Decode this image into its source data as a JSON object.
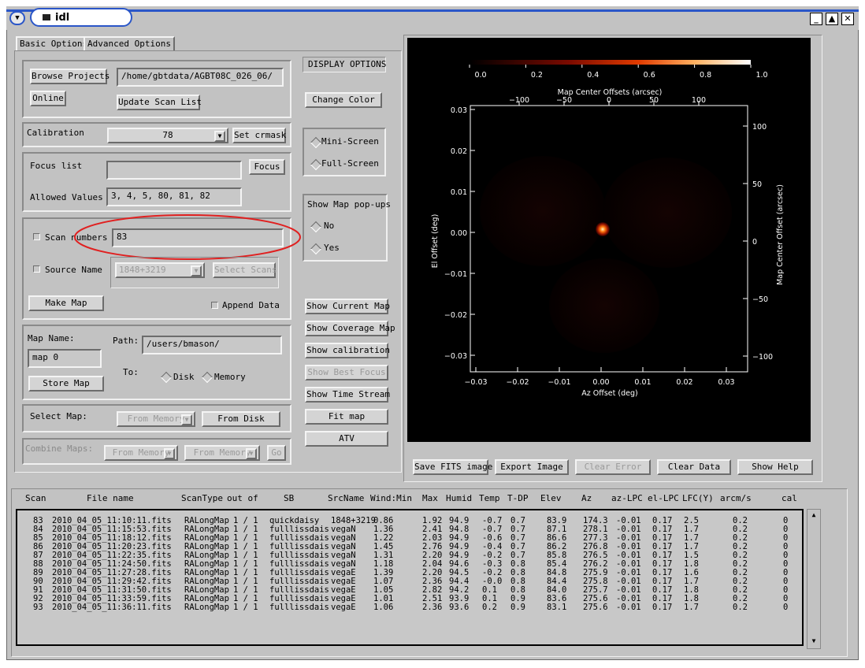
{
  "window": {
    "title": "idl",
    "menu_icon": "chevron-down-icon",
    "buttons": [
      "minimize-icon",
      "maximize-icon",
      "close-icon"
    ]
  },
  "tabs": [
    "Basic Options",
    "Advanced Options"
  ],
  "project": {
    "browse_label": "Browse Projects",
    "online_label": "Online",
    "path_value": "/home/gbtdata/AGBT08C_026_06/",
    "update_label": "Update Scan List"
  },
  "calibration": {
    "label": "Calibration",
    "value": "78",
    "set_label": "Set crmask"
  },
  "focus": {
    "list_label": "Focus list",
    "list_value": "",
    "focus_btn": "Focus",
    "allowed_label": "Allowed Values",
    "allowed_value": "3, 4, 5, 80, 81, 82"
  },
  "scan": {
    "numbers_label": "Scan numbers",
    "numbers_value": "83",
    "source_label": "Source Name",
    "source_value": "1848+3219",
    "select_scans": "Select Scans",
    "make_map": "Make Map",
    "append_data": "Append Data"
  },
  "mapname": {
    "label": "Map Name:",
    "value": "map 0",
    "path_label": "Path:",
    "path_value": "/users/bmason/",
    "to_label": "To:",
    "disk": "Disk",
    "memory": "Memory",
    "store": "Store Map"
  },
  "select_map": {
    "label": "Select Map:",
    "from_memory": "From Memory",
    "from_disk": "From Disk"
  },
  "combine": {
    "label": "Combine Maps:",
    "from_memory_1": "From Memory",
    "from_memory_2": "From Memory",
    "go": "Go"
  },
  "display": {
    "title": "DISPLAY OPTIONS",
    "change_color": "Change Color",
    "mini": "Mini-Screen",
    "full": "Full-Screen",
    "popups_title": "Show Map pop-ups",
    "no": "No",
    "yes": "Yes",
    "show_current": "Show Current Map",
    "show_coverage": "Show Coverage Map",
    "show_calibration": "Show calibration",
    "show_best_focus": "Show Best Focus",
    "show_time_stream": "Show Time Stream",
    "fit_map": "Fit map",
    "atv": "ATV"
  },
  "bottom_buttons": [
    "Save FITS image",
    "Export Image",
    "Clear Error",
    "Clear Data",
    "Show Help"
  ],
  "plot": {
    "colorbar_ticks": [
      "0.0",
      "0.2",
      "0.4",
      "0.6",
      "0.8",
      "1.0"
    ],
    "top_axis_label": "Map Center Offsets (arcsec)",
    "top_ticks": [
      "−100",
      "−50",
      "0",
      "50",
      "100"
    ],
    "bottom_axis_label": "Az Offset (deg)",
    "bottom_ticks": [
      "−0.03",
      "−0.02",
      "−0.01",
      "0.00",
      "0.01",
      "0.02",
      "0.03"
    ],
    "left_axis_label": "El Offset (deg)",
    "left_ticks": [
      "0.03",
      "0.02",
      "0.01",
      "0.00",
      "−0.01",
      "−0.02",
      "−0.03"
    ],
    "right_axis_label": "Map Center Offset (arcsec)",
    "right_ticks": [
      "100",
      "50",
      "0",
      "−50",
      "−100"
    ]
  },
  "table": {
    "headers": [
      "Scan",
      "File name",
      "ScanType",
      "out of",
      "SB",
      "SrcName",
      "Wind:Min",
      "Max",
      "Humid",
      "Temp",
      "T-DP",
      "Elev",
      "Az",
      "az-LPC",
      "el-LPC",
      "LFC(Y)",
      "arcm/s",
      "cal"
    ],
    "rows": [
      [
        "83",
        "2010_04_05_11:10:11.fits",
        "RALongMap",
        "1 / 1",
        "quickdaisy",
        "1848+3219",
        "0.86",
        "1.92",
        "94.9",
        "-0.7",
        "0.7",
        "83.9",
        "174.3",
        "-0.01",
        "0.17",
        "2.5",
        "0.2",
        "0"
      ],
      [
        "84",
        "2010_04_05_11:15:53.fits",
        "RALongMap",
        "1 / 1",
        "fulllissdais",
        "vegaN",
        "1.36",
        "2.41",
        "94.8",
        "-0.7",
        "0.7",
        "87.1",
        "278.1",
        "-0.01",
        "0.17",
        "1.7",
        "0.2",
        "0"
      ],
      [
        "85",
        "2010_04_05_11:18:12.fits",
        "RALongMap",
        "1 / 1",
        "fulllissdais",
        "vegaN",
        "1.22",
        "2.03",
        "94.9",
        "-0.6",
        "0.7",
        "86.6",
        "277.3",
        "-0.01",
        "0.17",
        "1.7",
        "0.2",
        "0"
      ],
      [
        "86",
        "2010_04_05_11:20:23.fits",
        "RALongMap",
        "1 / 1",
        "fulllissdais",
        "vegaN",
        "1.45",
        "2.76",
        "94.9",
        "-0.4",
        "0.7",
        "86.2",
        "276.8",
        "-0.01",
        "0.17",
        "1.7",
        "0.2",
        "0"
      ],
      [
        "87",
        "2010_04_05_11:22:35.fits",
        "RALongMap",
        "1 / 1",
        "fulllissdais",
        "vegaN",
        "1.31",
        "2.20",
        "94.9",
        "-0.2",
        "0.7",
        "85.8",
        "276.5",
        "-0.01",
        "0.17",
        "1.5",
        "0.2",
        "0"
      ],
      [
        "88",
        "2010_04_05_11:24:50.fits",
        "RALongMap",
        "1 / 1",
        "fulllissdais",
        "vegaN",
        "1.18",
        "2.04",
        "94.6",
        "-0.3",
        "0.8",
        "85.4",
        "276.2",
        "-0.01",
        "0.17",
        "1.8",
        "0.2",
        "0"
      ],
      [
        "89",
        "2010_04_05_11:27:28.fits",
        "RALongMap",
        "1 / 1",
        "fulllissdais",
        "vegaE",
        "1.39",
        "2.20",
        "94.5",
        "-0.2",
        "0.8",
        "84.8",
        "275.9",
        "-0.01",
        "0.17",
        "1.6",
        "0.2",
        "0"
      ],
      [
        "90",
        "2010_04_05_11:29:42.fits",
        "RALongMap",
        "1 / 1",
        "fulllissdais",
        "vegaE",
        "1.07",
        "2.36",
        "94.4",
        "-0.0",
        "0.8",
        "84.4",
        "275.8",
        "-0.01",
        "0.17",
        "1.7",
        "0.2",
        "0"
      ],
      [
        "91",
        "2010_04_05_11:31:50.fits",
        "RALongMap",
        "1 / 1",
        "fulllissdais",
        "vegaE",
        "1.05",
        "2.82",
        "94.2",
        "0.1",
        "0.8",
        "84.0",
        "275.7",
        "-0.01",
        "0.17",
        "1.8",
        "0.2",
        "0"
      ],
      [
        "92",
        "2010_04_05_11:33:59.fits",
        "RALongMap",
        "1 / 1",
        "fulllissdais",
        "vegaE",
        "1.01",
        "2.51",
        "93.9",
        "0.1",
        "0.9",
        "83.6",
        "275.6",
        "-0.01",
        "0.17",
        "1.8",
        "0.2",
        "0"
      ],
      [
        "93",
        "2010_04_05_11:36:11.fits",
        "RALongMap",
        "1 / 1",
        "fulllissdais",
        "vegaE",
        "1.06",
        "2.36",
        "93.6",
        "0.2",
        "0.9",
        "83.1",
        "275.6",
        "-0.01",
        "0.17",
        "1.7",
        "0.2",
        "0"
      ]
    ]
  },
  "colors": {
    "accent": "#2a56c8",
    "highlight_ring": "#e02020",
    "window_bg": "#c2c2c2"
  }
}
